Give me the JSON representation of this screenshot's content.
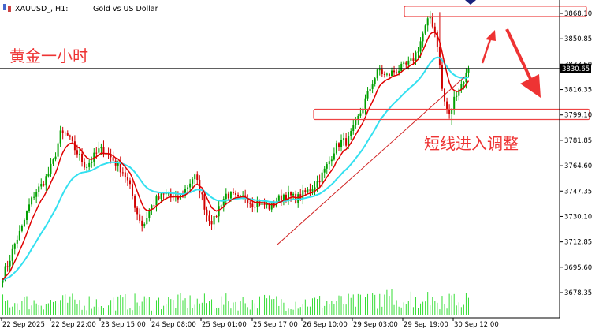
{
  "header": {
    "symbol": "XAUUSD_, H1:",
    "description": "Gold vs US Dollar"
  },
  "annotations": {
    "title_cn": "黄金一小时",
    "correction_cn": "短线进入调整"
  },
  "price_axis": {
    "ticks": [
      "3868.10",
      "3850.85",
      "3833.60",
      "3816.35",
      "3799.10",
      "3781.85",
      "3764.60",
      "3747.35",
      "3730.10",
      "3712.85",
      "3695.60",
      "3678.35"
    ],
    "current_price": "3830.65"
  },
  "time_axis": {
    "ticks": [
      "22 Sep 2025",
      "22 Sep 22:00",
      "23 Sep 15:00",
      "24 Sep 08:00",
      "25 Sep 01:00",
      "25 Sep 17:00",
      "26 Sep 10:00",
      "29 Sep 03:00",
      "29 Sep 19:00",
      "30 Sep 12:00"
    ]
  },
  "colors": {
    "bull": "#00a000",
    "bear": "#d00000",
    "ma_fast": "#e00000",
    "ma_slow": "#33e0f0",
    "volume": "#33dd33",
    "zone_border": "#ee4444",
    "arrow": "#ee3333",
    "annotation": "#ee3333",
    "marker": "#1a237e"
  },
  "chart_data": {
    "type": "candlestick",
    "symbol": "XAUUSD",
    "timeframe": "H1",
    "ylim": [
      3670,
      3880
    ],
    "x": [
      "22 Sep 2025",
      "22 Sep 22:00",
      "23 Sep 15:00",
      "24 Sep 08:00",
      "25 Sep 01:00",
      "25 Sep 17:00",
      "26 Sep 10:00",
      "29 Sep 03:00",
      "29 Sep 19:00",
      "30 Sep 12:00"
    ],
    "price_path": [
      3690,
      3700,
      3713,
      3722,
      3736,
      3746,
      3751,
      3758,
      3768,
      3786,
      3786,
      3778,
      3771,
      3764,
      3769,
      3775,
      3775,
      3770,
      3765,
      3760,
      3749,
      3733,
      3723,
      3735,
      3741,
      3744,
      3746,
      3741,
      3744,
      3751,
      3758,
      3747,
      3731,
      3726,
      3738,
      3745,
      3744,
      3741,
      3744,
      3739,
      3740,
      3738,
      3736,
      3741,
      3745,
      3744,
      3742,
      3745,
      3748,
      3752,
      3758,
      3766,
      3776,
      3781,
      3781,
      3790,
      3800,
      3811,
      3822,
      3830,
      3825,
      3828,
      3830,
      3832,
      3835,
      3843,
      3856,
      3866,
      3852,
      3811,
      3798,
      3814,
      3821,
      3830
    ],
    "resistance_zone": [
      3866,
      3873
    ],
    "support_zone": [
      3796,
      3803
    ],
    "last_price": 3830.65
  }
}
